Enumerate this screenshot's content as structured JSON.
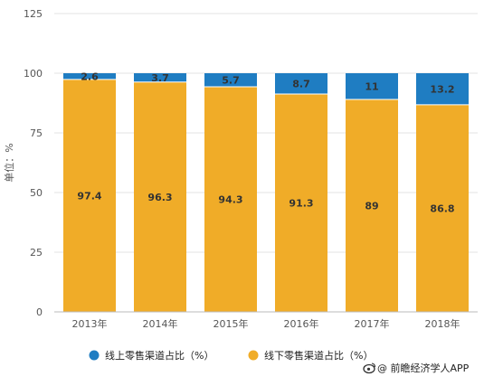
{
  "chart_data": {
    "type": "bar",
    "stacked": true,
    "categories": [
      "2013年",
      "2014年",
      "2015年",
      "2016年",
      "2017年",
      "2018年"
    ],
    "series": [
      {
        "name": "线下零售渠道占比（%）",
        "values": [
          97.4,
          96.3,
          94.3,
          91.3,
          89,
          86.8
        ],
        "color": "#F0AC28"
      },
      {
        "name": "线上零售渠道占比（%）",
        "values": [
          2.6,
          3.7,
          5.7,
          8.7,
          11,
          13.2
        ],
        "color": "#1F7DC2"
      }
    ],
    "ylabel": "单位：%",
    "ylim": [
      0,
      125
    ],
    "yticks": [
      0,
      25,
      50,
      75,
      100,
      125
    ],
    "grid": true,
    "legend_position": "bottom-left",
    "legend_order": [
      1,
      0
    ]
  },
  "credit": "@ 前瞻经济学人APP",
  "credit_icon": "weibo-icon"
}
